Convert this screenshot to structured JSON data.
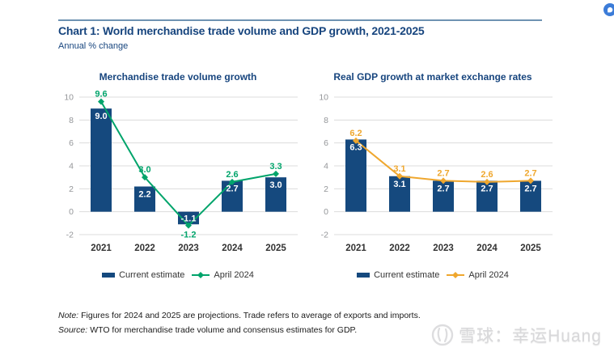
{
  "page": {
    "title": "Chart 1: World merchandise trade volume and GDP growth, 2021-2025",
    "subtitle": "Annual % change"
  },
  "colors": {
    "bar_navy": "#15497E",
    "line_green": "#00A46B",
    "line_orange": "#EFA72E",
    "title_blue": "#17457E",
    "rule_blue": "#6E93B2",
    "gridline": "#DCDCDC",
    "tick_gray": "#949699",
    "badge_blue": "#3C7CD8",
    "watermark_gray": "#D8D8DA"
  },
  "chart_data": [
    {
      "type": "bar",
      "title": "Merchandise trade volume growth",
      "categories": [
        "2021",
        "2022",
        "2023",
        "2024",
        "2025"
      ],
      "series": [
        {
          "name": "Current estimate",
          "type": "bar",
          "color": "#15497E",
          "values": [
            9.0,
            2.2,
            -1.1,
            2.7,
            3.0
          ]
        },
        {
          "name": "April 2024",
          "type": "line",
          "color": "#00A46B",
          "values": [
            9.6,
            3.0,
            -1.2,
            2.6,
            3.3
          ]
        }
      ],
      "ylim": [
        -2,
        10
      ],
      "ytick_step": 2,
      "grid": "horizontal",
      "legend_position": "bottom"
    },
    {
      "type": "bar",
      "title": "Real GDP growth at market exchange rates",
      "categories": [
        "2021",
        "2022",
        "2023",
        "2024",
        "2025"
      ],
      "series": [
        {
          "name": "Current estimate",
          "type": "bar",
          "color": "#15497E",
          "values": [
            6.3,
            3.1,
            2.7,
            2.7,
            2.7
          ]
        },
        {
          "name": "April 2024",
          "type": "line",
          "color": "#EFA72E",
          "values": [
            6.2,
            3.1,
            2.7,
            2.6,
            2.7
          ]
        }
      ],
      "ylim": [
        -2,
        10
      ],
      "ytick_step": 2,
      "grid": "horizontal",
      "legend_position": "bottom"
    }
  ],
  "notes": {
    "note_label": "Note:",
    "note_text": "Figures for 2024 and 2025 are projections. Trade refers to average of exports and imports.",
    "source_label": "Source:",
    "source_text": "WTO for merchandise trade volume and consensus estimates for GDP."
  },
  "watermark": {
    "text": "雪球：幸运Huang"
  }
}
